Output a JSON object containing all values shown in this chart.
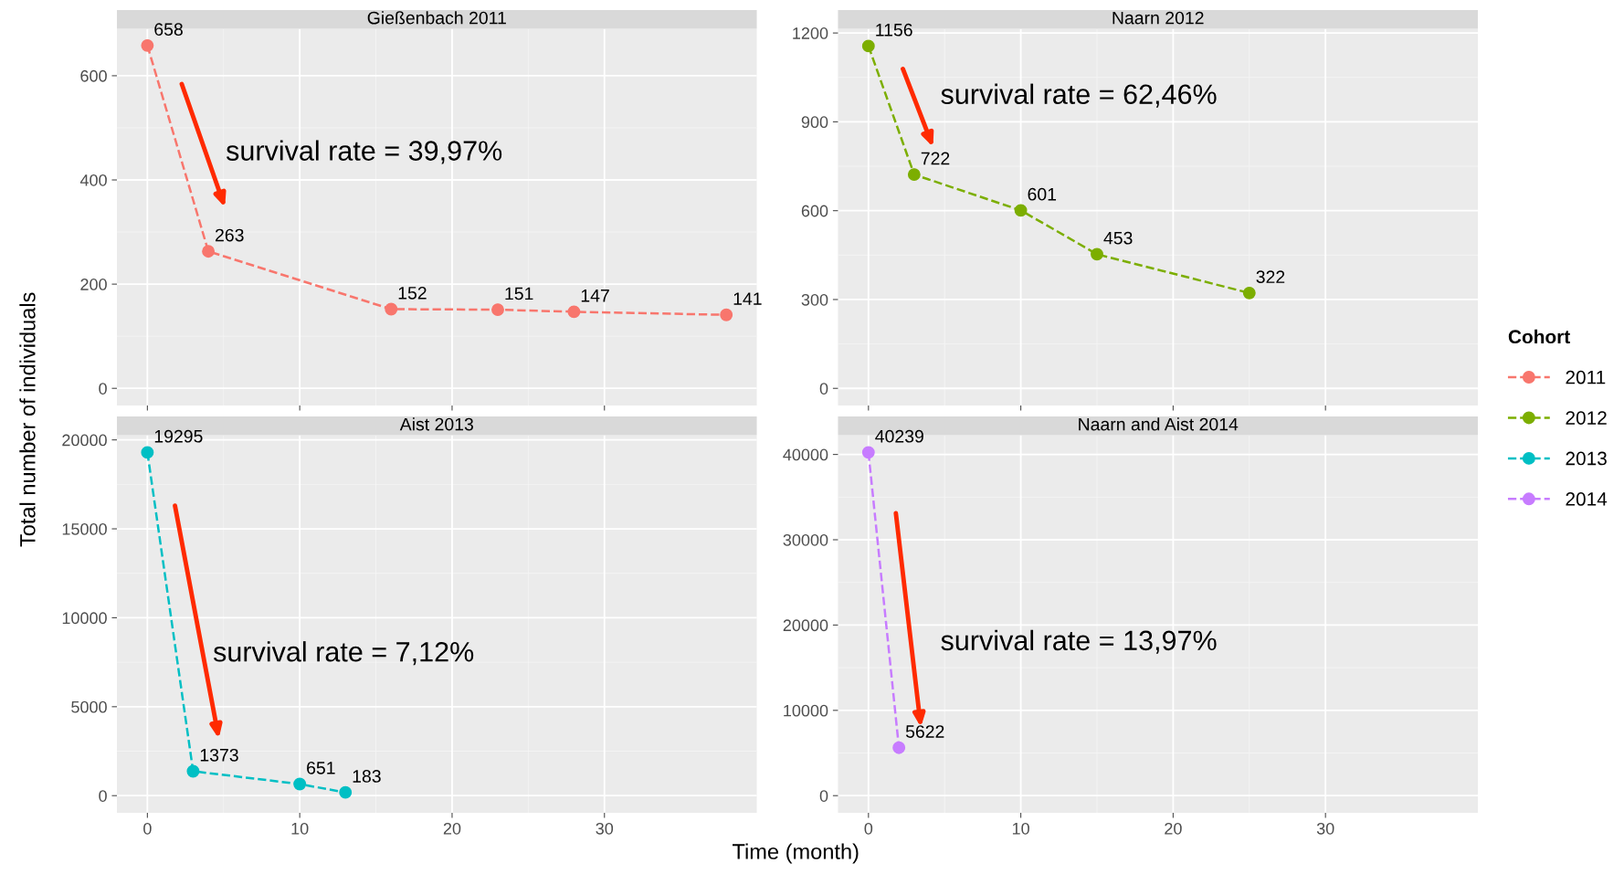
{
  "chart_data": [
    {
      "type": "line",
      "title": "Gießenbach 2011",
      "ylabel": "Total number of individuals",
      "legend_title": "Cohort",
      "legend": "right",
      "grid": true,
      "marker": "circle",
      "line_style": "dashed",
      "data_labels": true,
      "tick_labels": "y",
      "xlim": [
        -2,
        40
      ],
      "xticks": [
        0,
        10,
        20,
        30
      ],
      "ylim": [
        -33,
        690
      ],
      "yticks": [
        0,
        200,
        400,
        600
      ],
      "x": [
        0,
        4,
        16,
        23,
        28,
        38
      ],
      "series": [
        {
          "name": "2011",
          "color": "#f8766d",
          "values": [
            658,
            263,
            152,
            151,
            147,
            141
          ]
        }
      ],
      "annotations": [
        "survival rate = 39,97%"
      ]
    },
    {
      "type": "line",
      "title": "Naarn 2012",
      "legend": "right",
      "grid": true,
      "marker": "circle",
      "line_style": "dashed",
      "data_labels": true,
      "tick_labels": "y",
      "xlim": [
        -2,
        40
      ],
      "xticks": [
        0,
        10,
        20,
        30
      ],
      "ylim": [
        -58,
        1214
      ],
      "yticks": [
        0,
        300,
        600,
        900,
        1200
      ],
      "x": [
        0,
        3,
        10,
        15,
        25
      ],
      "series": [
        {
          "name": "2012",
          "color": "#7cae00",
          "values": [
            1156,
            722,
            601,
            453,
            322
          ]
        }
      ],
      "annotations": [
        "survival rate = 62,46%"
      ]
    },
    {
      "type": "line",
      "title": "Aist 2013",
      "xlabel": "Time (month)",
      "legend": "right",
      "grid": true,
      "marker": "circle",
      "line_style": "dashed",
      "data_labels": true,
      "xlim": [
        -2,
        40
      ],
      "xticks": [
        0,
        10,
        20,
        30
      ],
      "ylim": [
        -965,
        20260
      ],
      "yticks": [
        0,
        5000,
        10000,
        15000,
        20000
      ],
      "x": [
        0,
        3,
        10,
        13
      ],
      "series": [
        {
          "name": "2013",
          "color": "#00bfc4",
          "values": [
            19295,
            1373,
            651,
            183
          ]
        }
      ],
      "annotations": [
        "survival rate = 7,12%"
      ]
    },
    {
      "type": "line",
      "title": "Naarn and Aist 2014",
      "legend": "right",
      "grid": true,
      "marker": "circle",
      "line_style": "dashed",
      "data_labels": true,
      "xlim": [
        -2,
        40
      ],
      "xticks": [
        0,
        10,
        20,
        30
      ],
      "ylim": [
        -2012,
        42250
      ],
      "yticks": [
        0,
        10000,
        20000,
        30000,
        40000
      ],
      "x": [
        0,
        2
      ],
      "series": [
        {
          "name": "2014",
          "color": "#c77cff",
          "values": [
            40239,
            5622
          ]
        }
      ],
      "annotations": [
        "survival rate = 13,97%"
      ]
    }
  ]
}
